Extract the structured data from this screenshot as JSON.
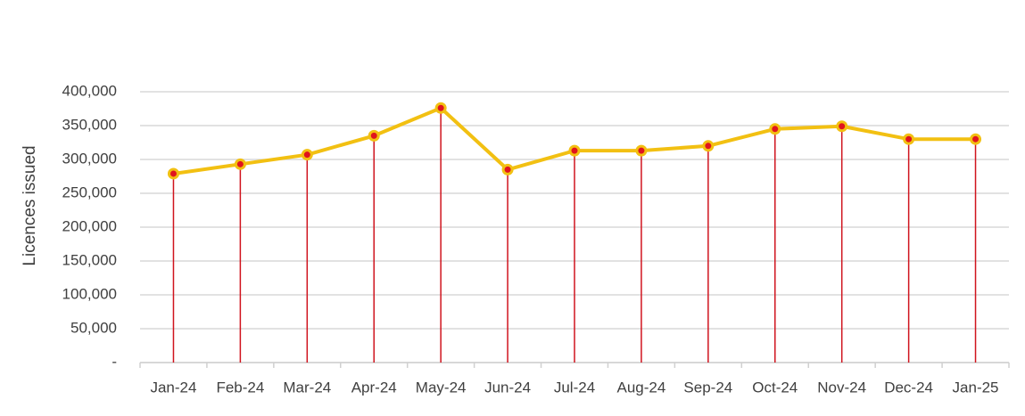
{
  "chart_data": {
    "type": "line",
    "y_label": "Licences issued",
    "categories": [
      "Jan-24",
      "Feb-24",
      "Mar-24",
      "Apr-24",
      "May-24",
      "Jun-24",
      "Jul-24",
      "Aug-24",
      "Sep-24",
      "Oct-24",
      "Nov-24",
      "Dec-24",
      "Jan-25"
    ],
    "series": [
      {
        "name": "Licences issued",
        "color": "#f2c012",
        "marker_color": "#e0141e",
        "drop_line_color": "#d0141e",
        "values": [
          279000,
          293000,
          307000,
          335000,
          376000,
          285000,
          313000,
          313000,
          320000,
          345000,
          349000,
          330000,
          330000
        ]
      }
    ],
    "ylim": [
      0,
      400000
    ],
    "yticks": [
      {
        "value": 0,
        "label": "-"
      },
      {
        "value": 50000,
        "label": "50,000"
      },
      {
        "value": 100000,
        "label": "100,000"
      },
      {
        "value": 150000,
        "label": "150,000"
      },
      {
        "value": 200000,
        "label": "200,000"
      },
      {
        "value": 250000,
        "label": "250,000"
      },
      {
        "value": 300000,
        "label": "300,000"
      },
      {
        "value": 350000,
        "label": "350,000"
      },
      {
        "value": 400000,
        "label": "400,000"
      }
    ],
    "grid": true,
    "drop_lines": true
  }
}
